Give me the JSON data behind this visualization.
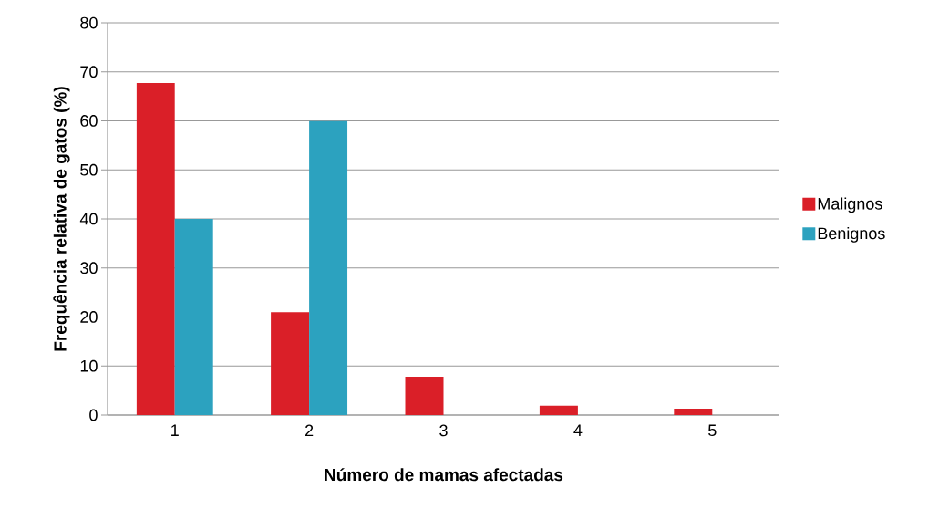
{
  "chart_data": {
    "type": "bar",
    "xlabel": "Número de mamas afectadas",
    "ylabel": "Frequência relativa de gatos (%)",
    "categories": [
      "1",
      "2",
      "3",
      "4",
      "5"
    ],
    "series": [
      {
        "name": "Malignos",
        "color": "#da1f28",
        "values": [
          67.7,
          21.0,
          7.8,
          1.9,
          1.3
        ]
      },
      {
        "name": "Benignos",
        "color": "#2ca2bf",
        "values": [
          40,
          60,
          null,
          null,
          null
        ]
      }
    ],
    "ylim": [
      0,
      80
    ],
    "yticks": [
      0,
      10,
      20,
      30,
      40,
      50,
      60,
      70,
      80
    ],
    "grid": "y",
    "legend": "right"
  }
}
